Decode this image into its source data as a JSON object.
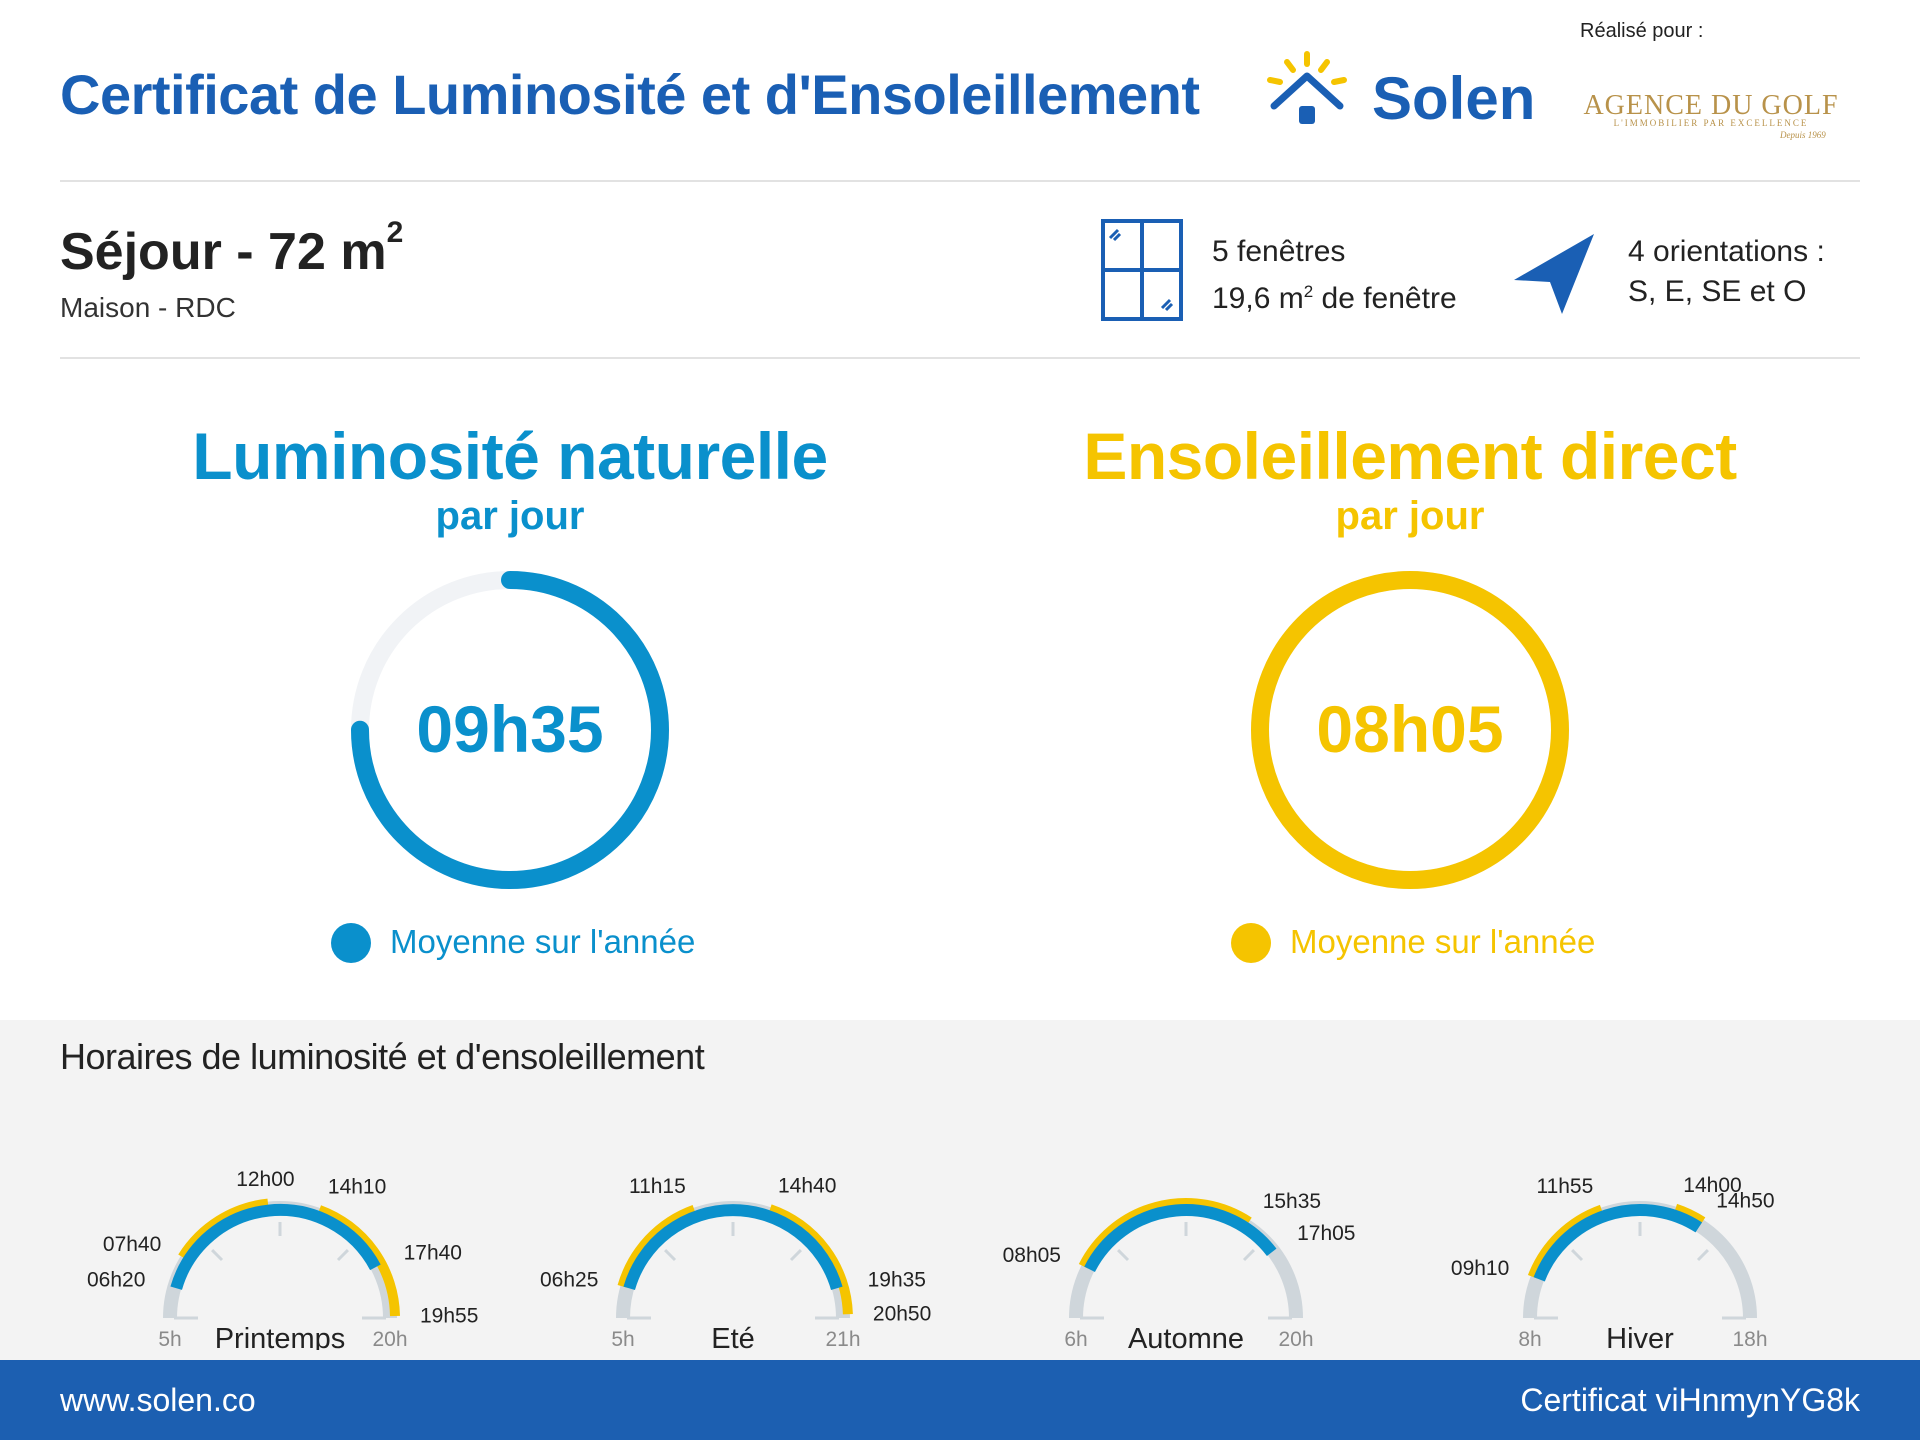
{
  "header": {
    "title": "Certificat de Luminosité et d'Ensoleillement",
    "brand": "Solen",
    "made_for": "Réalisé pour :",
    "agency_name": "AGENCE DU GOLF",
    "agency_tagline": "L'IMMOBILIER PAR EXCELLENCE",
    "agency_since": "Depuis 1969"
  },
  "room": {
    "title": "Séjour - 72 m",
    "title_sup": "2",
    "subtitle": "Maison - RDC"
  },
  "windows": {
    "count_text": "5 fenêtres",
    "area_text": "19,6 m",
    "area_sup": "2",
    "area_suffix": " de fenêtre"
  },
  "orientations": {
    "count_text": "4 orientations :",
    "list_text": "S, E, SE et O"
  },
  "luminosity": {
    "title": "Luminosité naturelle",
    "subtitle": "par jour",
    "value": "09h35",
    "fraction": 0.75,
    "legend": "Moyenne sur l'année",
    "color": "#0a90cc"
  },
  "sunshine": {
    "title": "Ensoleillement direct",
    "subtitle": "par jour",
    "value": "08h05",
    "fraction": 1.0,
    "legend": "Moyenne sur l'année",
    "color": "#f5c400"
  },
  "hours": {
    "title": "Horaires de luminosité et d'ensoleillement",
    "seasons": [
      {
        "name": "Printemps",
        "start": 5,
        "end": 20,
        "start_label": "5h",
        "end_label": "20h",
        "light": [
          "06h20",
          "17h40"
        ],
        "sun": [
          [
            "07h40",
            "12h00"
          ],
          [
            "14h10",
            "19h55"
          ]
        ]
      },
      {
        "name": "Eté",
        "start": 5,
        "end": 21,
        "start_label": "5h",
        "end_label": "21h",
        "light": [
          "06h25",
          "19h35"
        ],
        "sun": [
          [
            "06h25",
            "11h15"
          ],
          [
            "14h40",
            "20h50"
          ]
        ]
      },
      {
        "name": "Automne",
        "start": 6,
        "end": 20,
        "start_label": "6h",
        "end_label": "20h",
        "light": [
          "08h05",
          "17h05"
        ],
        "sun": [
          [
            "08h05",
            "15h35"
          ]
        ]
      },
      {
        "name": "Hiver",
        "start": 8,
        "end": 18,
        "start_label": "8h",
        "end_label": "18h",
        "light": [
          "09h10",
          "14h50"
        ],
        "sun": [
          [
            "09h10",
            "11h55"
          ],
          [
            "14h00",
            "14h50"
          ]
        ]
      }
    ],
    "colors": {
      "track": "#cfd6db",
      "light": "#0a90cc",
      "sun": "#f5c400",
      "tick": "#cfd6db"
    }
  },
  "footer": {
    "url": "www.solen.co",
    "certificate": "Certificat viHnmynYG8k"
  }
}
